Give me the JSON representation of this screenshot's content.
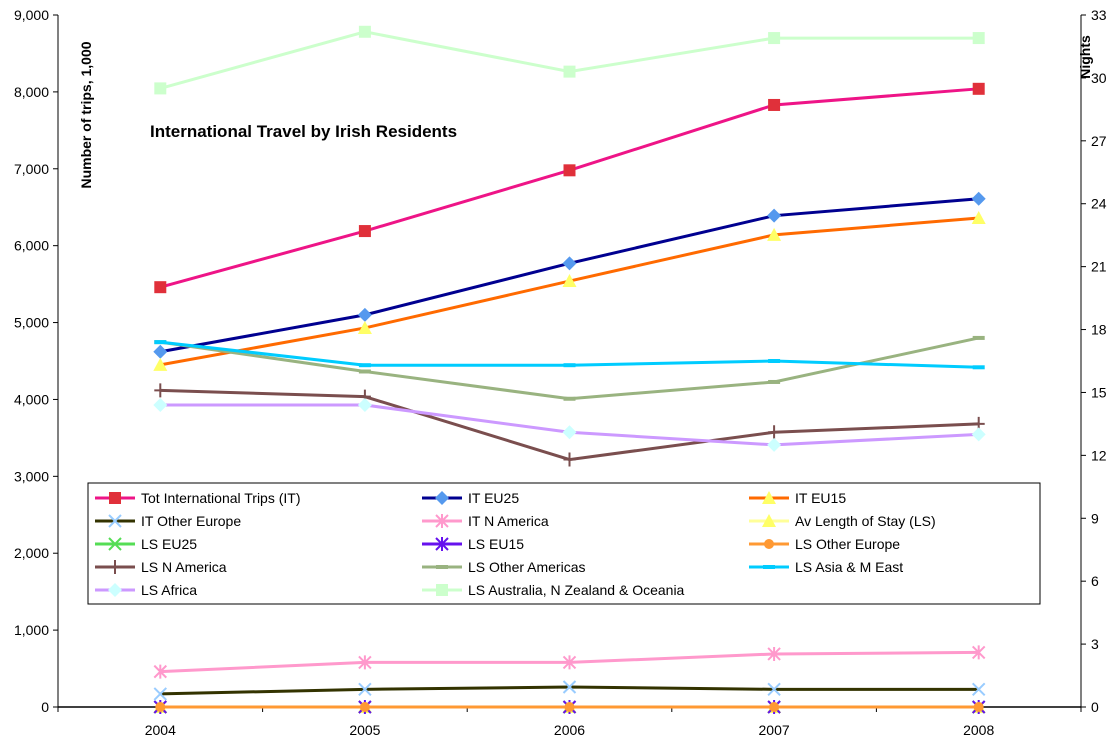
{
  "chart_data": {
    "type": "line",
    "title": "International Travel by Irish Residents",
    "ylabel": "Number of trips, 1,000",
    "y2label": "Nights",
    "categories": [
      "2004",
      "2005",
      "2006",
      "2007",
      "2008"
    ],
    "ylim": [
      0,
      9000
    ],
    "y2lim": [
      0,
      33
    ],
    "yticks": [
      "0",
      "1,000",
      "2,000",
      "3,000",
      "4,000",
      "5,000",
      "6,000",
      "7,000",
      "8,000",
      "9,000"
    ],
    "y2ticks": [
      "0",
      "3",
      "6",
      "9",
      "12",
      "15",
      "18",
      "21",
      "24",
      "27",
      "30",
      "33"
    ],
    "grid": false,
    "legend_position": "inside-bottom-left",
    "series": [
      {
        "name": "Tot International Trips (IT)",
        "axis": "left",
        "values": [
          5460,
          6190,
          6980,
          7830,
          8040
        ],
        "line": "#ee1487",
        "marker": "square",
        "mcolor": "#e0303a"
      },
      {
        "name": "IT EU25",
        "axis": "left",
        "values": [
          4620,
          5100,
          5770,
          6390,
          6610
        ],
        "line": "#000090",
        "marker": "diamond",
        "mcolor": "#5599ee"
      },
      {
        "name": "IT EU15",
        "axis": "left",
        "values": [
          4450,
          4930,
          5540,
          6140,
          6360
        ],
        "line": "#ff6a00",
        "marker": "triangle",
        "mcolor": "#ffff66"
      },
      {
        "name": "IT Other Europe",
        "axis": "left",
        "values": [
          170,
          230,
          260,
          230,
          230
        ],
        "line": "#333300",
        "marker": "x",
        "mcolor": "#99ccff"
      },
      {
        "name": "IT N America",
        "axis": "left",
        "values": [
          460,
          580,
          580,
          690,
          710
        ],
        "line": "#ff99cc",
        "marker": "asterisk",
        "mcolor": "#ff99cc"
      },
      {
        "name": "Av Length of Stay (LS)",
        "axis": "right",
        "values": [
          0,
          0,
          0,
          0,
          0
        ],
        "line": "#ffff99",
        "marker": "triangle",
        "mcolor": "#ffff66"
      },
      {
        "name": "LS EU25",
        "axis": "right",
        "values": [
          0,
          0,
          0,
          0,
          0
        ],
        "line": "#55dd55",
        "marker": "x",
        "mcolor": "#55dd55"
      },
      {
        "name": "LS EU15",
        "axis": "right",
        "values": [
          0,
          0,
          0,
          0,
          0
        ],
        "line": "#6611ee",
        "marker": "asterisk",
        "mcolor": "#6611ee"
      },
      {
        "name": "LS Other Europe",
        "axis": "right",
        "values": [
          0,
          0,
          0,
          0,
          0
        ],
        "line": "#ff9933",
        "marker": "circle",
        "mcolor": "#ff9933"
      },
      {
        "name": "LS N America",
        "axis": "right",
        "values": [
          15.1,
          14.8,
          11.8,
          13.1,
          13.5
        ],
        "line": "#7a4e4e",
        "marker": "plus",
        "mcolor": "#7a4e4e"
      },
      {
        "name": "LS Other Americas",
        "axis": "right",
        "values": [
          17.4,
          16.0,
          14.7,
          15.5,
          17.6
        ],
        "line": "#99b380",
        "marker": "dash",
        "mcolor": "#99b380"
      },
      {
        "name": "LS Asia & M East",
        "axis": "right",
        "values": [
          17.4,
          16.3,
          16.3,
          16.5,
          16.2
        ],
        "line": "#00ccff",
        "marker": "dash",
        "mcolor": "#00ccff"
      },
      {
        "name": "LS Africa",
        "axis": "right",
        "values": [
          14.4,
          14.4,
          13.1,
          12.5,
          13.0
        ],
        "line": "#cc99ff",
        "marker": "diamond",
        "mcolor": "#ccffff"
      },
      {
        "name": "LS Australia, N Zealand & Oceania",
        "axis": "right",
        "values": [
          29.5,
          32.2,
          30.3,
          31.9,
          31.9
        ],
        "line": "#ccffcc",
        "marker": "square",
        "mcolor": "#ccffcc"
      }
    ]
  }
}
